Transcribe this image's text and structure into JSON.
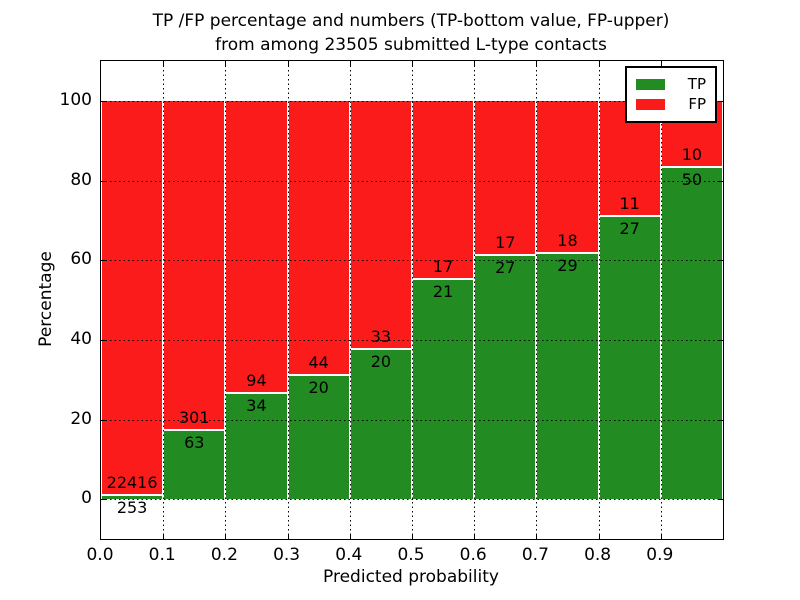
{
  "chart_data": {
    "type": "bar",
    "stacked": true,
    "normalized_to_percent": true,
    "title_line1": "TP /FP percentage and numbers (TP-bottom value, FP-upper)",
    "title_line2": "from among 23505 submitted L-type contacts",
    "total_submitted": 23505,
    "xlabel": "Predicted probability",
    "ylabel": "Percentage",
    "grid": true,
    "xlim": [
      0.0,
      1.0
    ],
    "ylim": [
      -10,
      110
    ],
    "x_tick_labels": [
      "0.0",
      "0.1",
      "0.2",
      "0.3",
      "0.4",
      "0.5",
      "0.6",
      "0.7",
      "0.8",
      "0.9"
    ],
    "y_tick_values": [
      0,
      20,
      40,
      60,
      80,
      100
    ],
    "y_tick_labels": [
      "0",
      "20",
      "40",
      "60",
      "80",
      "100"
    ],
    "categories": [
      "0.0-0.1",
      "0.1-0.2",
      "0.2-0.3",
      "0.3-0.4",
      "0.4-0.5",
      "0.5-0.6",
      "0.6-0.7",
      "0.7-0.8",
      "0.8-0.9",
      "0.9-1.0"
    ],
    "series": [
      {
        "name": "TP",
        "color": "#228b22",
        "counts": [
          253,
          63,
          34,
          20,
          20,
          21,
          27,
          29,
          27,
          50
        ]
      },
      {
        "name": "FP",
        "color": "#fb1b1b",
        "counts": [
          22416,
          301,
          94,
          44,
          33,
          17,
          17,
          18,
          11,
          10
        ]
      }
    ],
    "tp_percent_of_bin": [
      1.1,
      17.3,
      26.6,
      31.3,
      37.7,
      55.3,
      61.4,
      61.7,
      71.1,
      83.3
    ],
    "legend": {
      "position": "upper right",
      "items": [
        {
          "label": "TP",
          "color": "#228b22"
        },
        {
          "label": "FP",
          "color": "#fb1b1b"
        }
      ]
    }
  }
}
